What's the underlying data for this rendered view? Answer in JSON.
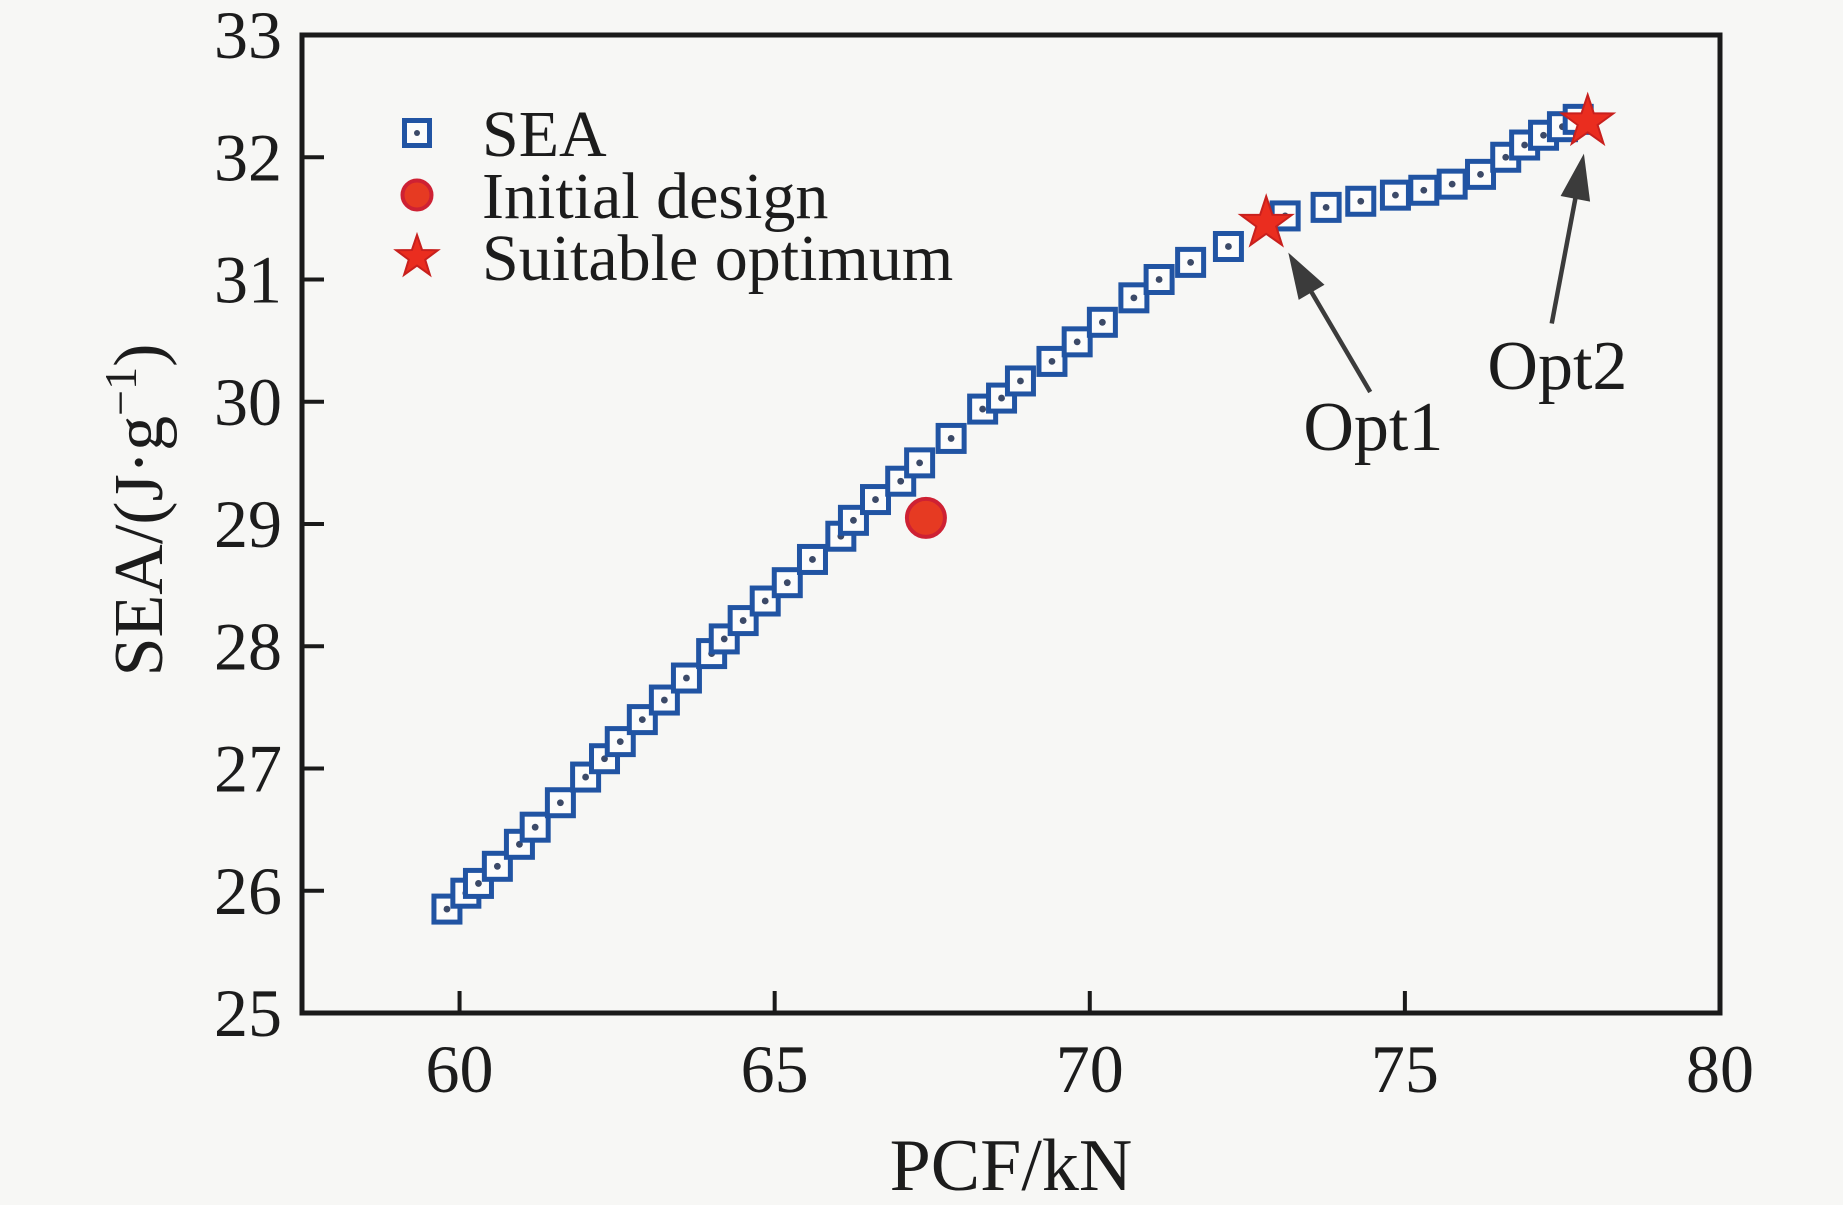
{
  "chart_data": {
    "type": "scatter",
    "title": "",
    "xlabel": "PCF/kN",
    "ylabel": "SEA/(J·g⁻¹)",
    "xlim": [
      57.5,
      80
    ],
    "ylim": [
      25,
      33
    ],
    "xticks": [
      60,
      65,
      70,
      75,
      80
    ],
    "yticks": [
      25,
      26,
      27,
      28,
      29,
      30,
      31,
      32,
      33
    ],
    "grid": false,
    "legend": {
      "position": "upper-left",
      "entries": [
        {
          "label": "SEA",
          "series": 0
        },
        {
          "label": "Initial design",
          "series": 1
        },
        {
          "label": "Suitable optimum",
          "series": 2
        }
      ]
    },
    "series": [
      {
        "name": "SEA",
        "marker": "open-square-dot",
        "edge_color": "#2154a3",
        "face_color": "#fcfcfb",
        "dot_color": "#3c4a68",
        "points": [
          [
            59.8,
            25.85
          ],
          [
            60.1,
            25.98
          ],
          [
            60.3,
            26.06
          ],
          [
            60.6,
            26.2
          ],
          [
            60.95,
            26.38
          ],
          [
            61.2,
            26.52
          ],
          [
            61.6,
            26.72
          ],
          [
            62.0,
            26.93
          ],
          [
            62.3,
            27.08
          ],
          [
            62.55,
            27.22
          ],
          [
            62.9,
            27.4
          ],
          [
            63.25,
            27.56
          ],
          [
            63.6,
            27.74
          ],
          [
            64.0,
            27.94
          ],
          [
            64.2,
            28.06
          ],
          [
            64.5,
            28.21
          ],
          [
            64.85,
            28.37
          ],
          [
            65.2,
            28.52
          ],
          [
            65.6,
            28.71
          ],
          [
            66.05,
            28.9
          ],
          [
            66.25,
            29.03
          ],
          [
            66.6,
            29.2
          ],
          [
            67.0,
            29.35
          ],
          [
            67.3,
            29.5
          ],
          [
            67.8,
            29.7
          ],
          [
            68.3,
            29.94
          ],
          [
            68.6,
            30.03
          ],
          [
            68.9,
            30.17
          ],
          [
            69.4,
            30.33
          ],
          [
            69.8,
            30.49
          ],
          [
            70.2,
            30.65
          ],
          [
            70.7,
            30.85
          ],
          [
            71.1,
            31.0
          ],
          [
            71.6,
            31.14
          ],
          [
            72.2,
            31.27
          ],
          [
            73.1,
            31.52
          ],
          [
            73.75,
            31.59
          ],
          [
            74.3,
            31.64
          ],
          [
            74.85,
            31.69
          ],
          [
            75.3,
            31.73
          ],
          [
            75.75,
            31.78
          ],
          [
            76.2,
            31.86
          ],
          [
            76.6,
            32.0
          ],
          [
            76.9,
            32.1
          ],
          [
            77.2,
            32.18
          ],
          [
            77.5,
            32.25
          ],
          [
            77.75,
            32.31
          ]
        ]
      },
      {
        "name": "Initial design",
        "marker": "filled-circle",
        "edge_color": "#ce2133",
        "face_color": "#e63a22",
        "points": [
          [
            67.4,
            29.05
          ]
        ]
      },
      {
        "name": "Suitable optimum",
        "marker": "filled-star",
        "edge_color": "#c8201d",
        "face_color": "#ea2d1f",
        "points": [
          [
            72.8,
            31.46
          ],
          [
            77.9,
            32.29
          ]
        ]
      }
    ],
    "annotations": [
      {
        "text": "Opt1",
        "label_at": [
          74.5,
          29.8
        ],
        "arrow_from": [
          74.45,
          30.08
        ],
        "arrow_to": [
          73.15,
          31.22
        ]
      },
      {
        "text": "Opt2",
        "label_at": [
          77.42,
          30.3
        ],
        "arrow_from": [
          77.33,
          30.64
        ],
        "arrow_to": [
          77.84,
          32.03
        ]
      }
    ],
    "style": {
      "background": "#f7f7f5",
      "axis_color": "#1a1a1a",
      "text_color": "#1c1c1c",
      "arrow_color": "#3b3b3b"
    }
  }
}
